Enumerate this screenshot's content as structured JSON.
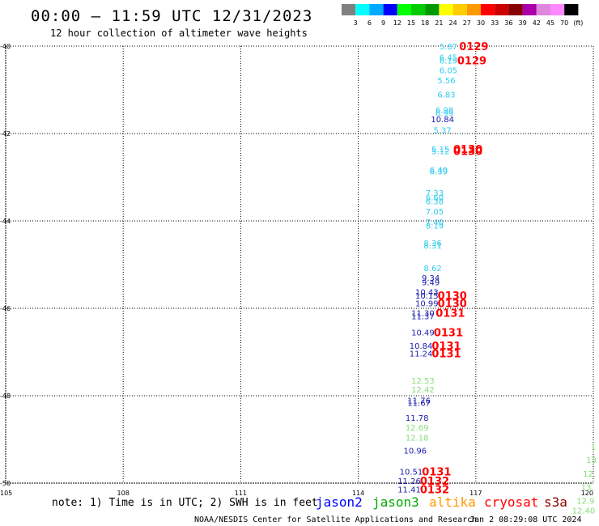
{
  "header": {
    "title": "00:00 – 11:59 UTC 12/31/2023",
    "subtitle": "12 hour collection of altimeter wave heights"
  },
  "color_scale": {
    "labels": [
      "3",
      "6",
      "9",
      "12",
      "15",
      "18",
      "21",
      "24",
      "27",
      "30",
      "33",
      "36",
      "39",
      "42",
      "45",
      "70",
      "(ft)"
    ],
    "colors": [
      "#808080",
      "#00ffff",
      "#00aaff",
      "#0000ff",
      "#00ff00",
      "#00cc00",
      "#009900",
      "#ffff00",
      "#ffcc00",
      "#ff9900",
      "#ff0000",
      "#cc0000",
      "#880000",
      "#aa00aa",
      "#dd88dd",
      "#ff88ff",
      "#000000"
    ]
  },
  "map": {
    "lon_range": [
      105,
      120
    ],
    "lat_range": [
      -40,
      -50
    ],
    "x_ticks": [
      "105",
      "108",
      "111",
      "114",
      "117",
      "120"
    ],
    "y_ticks": [
      "-40",
      "-42",
      "-44",
      "-46",
      "-48",
      "-50"
    ],
    "x_tick_values": [
      105,
      108,
      111,
      114,
      117,
      120
    ],
    "y_tick_values": [
      -40,
      -42,
      -44,
      -46,
      -48,
      -50
    ],
    "grid": "dotted"
  },
  "measurements": [
    {
      "lon": 116.3,
      "lat": -40.0,
      "text": "5.87",
      "color": "#33ccee"
    },
    {
      "lon": 116.3,
      "lat": -40.25,
      "text": "6.45",
      "color": "#33ccee"
    },
    {
      "lon": 116.3,
      "lat": -40.32,
      "text": "6.19",
      "color": "#33ccee"
    },
    {
      "lon": 116.3,
      "lat": -40.55,
      "text": "6.05",
      "color": "#33ccee"
    },
    {
      "lon": 116.25,
      "lat": -40.78,
      "text": "5.56",
      "color": "#33ccee"
    },
    {
      "lon": 116.25,
      "lat": -41.1,
      "text": "6.83",
      "color": "#33ccee"
    },
    {
      "lon": 116.2,
      "lat": -41.45,
      "text": "6.98",
      "color": "#33ccee"
    },
    {
      "lon": 116.2,
      "lat": -41.53,
      "text": "6.99",
      "color": "#33ccee"
    },
    {
      "lon": 116.15,
      "lat": -41.67,
      "text": "10.84",
      "color": "#1a1aaa"
    },
    {
      "lon": 116.15,
      "lat": -41.92,
      "text": "5.37",
      "color": "#33ccee"
    },
    {
      "lon": 116.1,
      "lat": -42.35,
      "text": "5.15",
      "color": "#33ccee"
    },
    {
      "lon": 116.1,
      "lat": -42.4,
      "text": "5.12",
      "color": "#33ccee"
    },
    {
      "lon": 116.05,
      "lat": -42.82,
      "text": "6.40",
      "color": "#33ccee"
    },
    {
      "lon": 116.05,
      "lat": -42.86,
      "text": "6.39",
      "color": "#33ccee"
    },
    {
      "lon": 115.95,
      "lat": -43.35,
      "text": "7.33",
      "color": "#33ccee"
    },
    {
      "lon": 115.95,
      "lat": -43.45,
      "text": "6.60",
      "color": "#33ccee"
    },
    {
      "lon": 115.95,
      "lat": -43.55,
      "text": "6.38",
      "color": "#33ccee"
    },
    {
      "lon": 115.95,
      "lat": -43.78,
      "text": "7.05",
      "color": "#33ccee"
    },
    {
      "lon": 115.95,
      "lat": -44.02,
      "text": "7.40",
      "color": "#33ccee"
    },
    {
      "lon": 115.95,
      "lat": -44.1,
      "text": "8.19",
      "color": "#33ccee"
    },
    {
      "lon": 115.9,
      "lat": -44.5,
      "text": "8.36",
      "color": "#33ccee"
    },
    {
      "lon": 115.9,
      "lat": -44.56,
      "text": "8.31",
      "color": "#33ccee"
    },
    {
      "lon": 115.9,
      "lat": -45.07,
      "text": "8.62",
      "color": "#33ccee"
    },
    {
      "lon": 115.85,
      "lat": -45.3,
      "text": "9.34",
      "color": "#1a1aaa"
    },
    {
      "lon": 115.85,
      "lat": -45.4,
      "text": "9.49",
      "color": "#1a1aaa"
    },
    {
      "lon": 115.75,
      "lat": -45.62,
      "text": "10.43",
      "color": "#1a1aaa"
    },
    {
      "lon": 115.75,
      "lat": -45.7,
      "text": "10.15",
      "color": "#1a1aaa"
    },
    {
      "lon": 115.75,
      "lat": -45.88,
      "text": "10.99",
      "color": "#1a1aaa"
    },
    {
      "lon": 115.65,
      "lat": -46.1,
      "text": "11.30",
      "color": "#1a1aaa"
    },
    {
      "lon": 115.65,
      "lat": -46.18,
      "text": "11.37",
      "color": "#1a1aaa"
    },
    {
      "lon": 115.65,
      "lat": -46.55,
      "text": "10.49",
      "color": "#1a1aaa"
    },
    {
      "lon": 115.6,
      "lat": -46.85,
      "text": "10.84",
      "color": "#1a1aaa"
    },
    {
      "lon": 115.6,
      "lat": -47.03,
      "text": "11.24",
      "color": "#1a1aaa"
    },
    {
      "lon": 115.65,
      "lat": -47.65,
      "text": "12.53",
      "color": "#88dd77"
    },
    {
      "lon": 115.65,
      "lat": -47.85,
      "text": "12.42",
      "color": "#88dd77"
    },
    {
      "lon": 115.55,
      "lat": -48.1,
      "text": "11.76",
      "color": "#1a1aaa"
    },
    {
      "lon": 115.55,
      "lat": -48.16,
      "text": "11.67",
      "color": "#1a1aaa"
    },
    {
      "lon": 115.5,
      "lat": -48.5,
      "text": "11.78",
      "color": "#1a1aaa"
    },
    {
      "lon": 115.5,
      "lat": -48.72,
      "text": "12.69",
      "color": "#88dd77"
    },
    {
      "lon": 115.5,
      "lat": -48.95,
      "text": "12.18",
      "color": "#88dd77"
    },
    {
      "lon": 115.45,
      "lat": -49.25,
      "text": "10.96",
      "color": "#1a1aaa"
    },
    {
      "lon": 115.35,
      "lat": -49.73,
      "text": "10.51",
      "color": "#1a1aaa"
    },
    {
      "lon": 115.3,
      "lat": -49.94,
      "text": "11.26",
      "color": "#1a1aaa"
    },
    {
      "lon": 115.3,
      "lat": -50.14,
      "text": "11.41",
      "color": "#1a1aaa"
    },
    {
      "lon": 120.0,
      "lat": -49.16,
      "text": "1",
      "color": "#88dd77"
    },
    {
      "lon": 119.95,
      "lat": -49.46,
      "text": "13",
      "color": "#88dd77"
    },
    {
      "lon": 119.9,
      "lat": -49.78,
      "text": "12.",
      "color": "#88dd77"
    },
    {
      "lon": 119.85,
      "lat": -50.08,
      "text": "13.",
      "color": "#88dd77"
    },
    {
      "lon": 119.8,
      "lat": -50.4,
      "text": "12.9",
      "color": "#88dd77"
    },
    {
      "lon": 119.75,
      "lat": -50.62,
      "text": "12.40",
      "color": "#88dd77"
    }
  ],
  "cycle_labels": [
    {
      "lon": 116.95,
      "lat": -40.0,
      "text": "0129"
    },
    {
      "lon": 116.9,
      "lat": -40.32,
      "text": "0129"
    },
    {
      "lon": 116.8,
      "lat": -42.35,
      "text": "0130"
    },
    {
      "lon": 116.8,
      "lat": -42.4,
      "text": "0130"
    },
    {
      "lon": 116.4,
      "lat": -45.7,
      "text": "0130"
    },
    {
      "lon": 116.4,
      "lat": -45.88,
      "text": "0130"
    },
    {
      "lon": 116.35,
      "lat": -46.1,
      "text": "0131"
    },
    {
      "lon": 116.3,
      "lat": -46.55,
      "text": "0131"
    },
    {
      "lon": 116.25,
      "lat": -46.85,
      "text": "0131"
    },
    {
      "lon": 116.25,
      "lat": -47.03,
      "text": "0131"
    },
    {
      "lon": 116.0,
      "lat": -49.73,
      "text": "0131"
    },
    {
      "lon": 115.95,
      "lat": -49.94,
      "text": "0132"
    },
    {
      "lon": 115.95,
      "lat": -50.14,
      "text": "0132"
    }
  ],
  "note": "note: 1) Time is in UTC; 2) SWH is in feet",
  "legend": [
    {
      "name": "jason2",
      "color": "#0000ff"
    },
    {
      "name": "jason3",
      "color": "#00aa00"
    },
    {
      "name": "altika",
      "color": "#ff9900"
    },
    {
      "name": "cryosat",
      "color": "#ff0000"
    },
    {
      "name": "s3a",
      "color": "#8b0000"
    }
  ],
  "credit": "NOAA/NESDIS Center for Satellite Applications and Research",
  "timestamp": "Jan  2 08:29:08 UTC 2024"
}
